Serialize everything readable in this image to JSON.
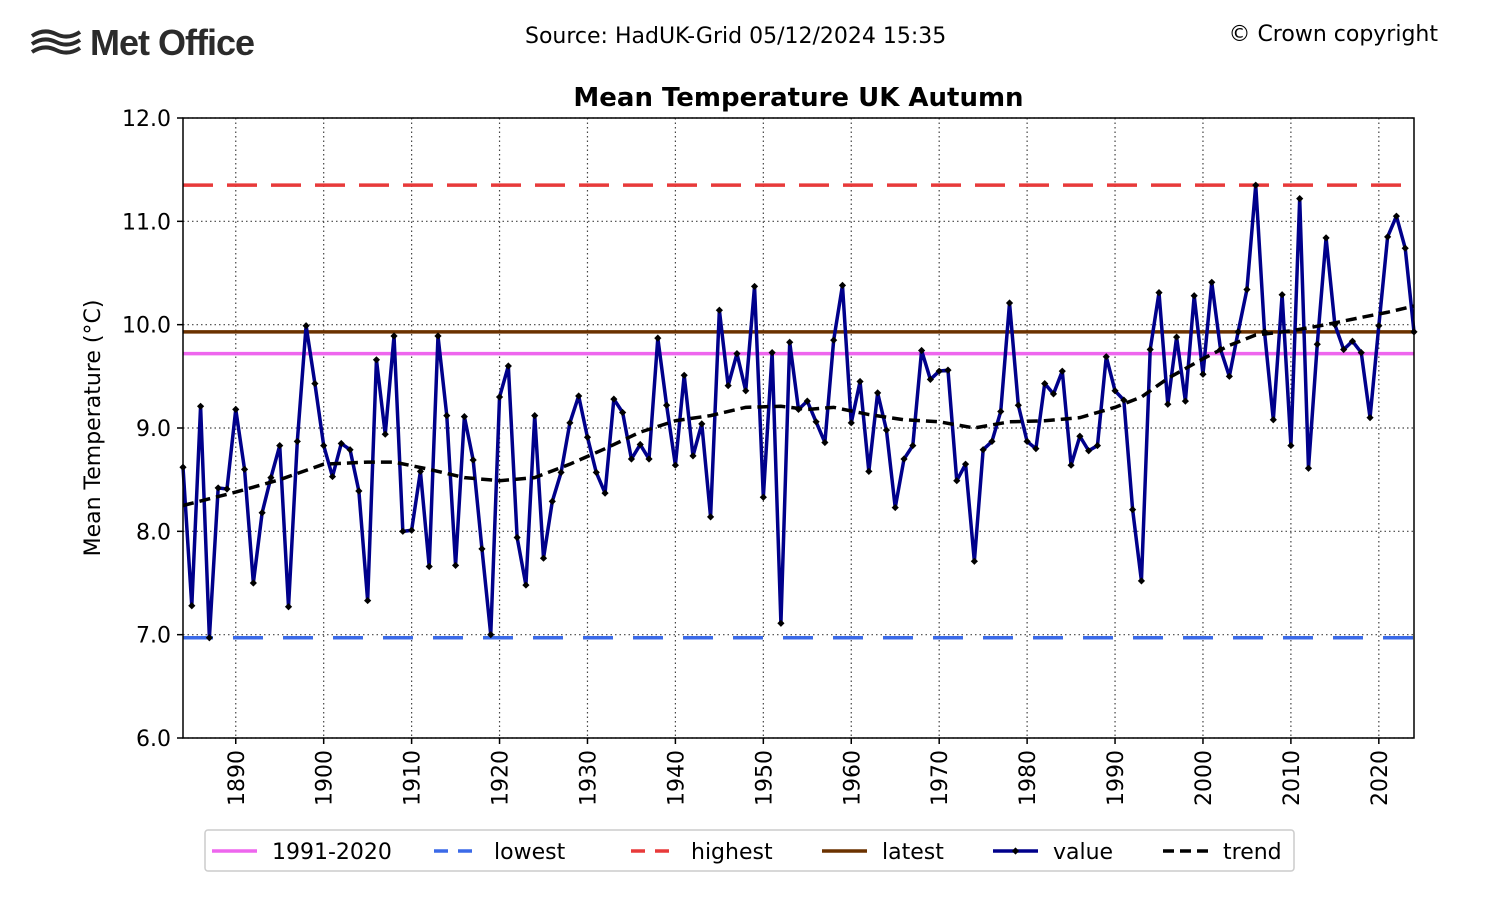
{
  "header": {
    "logo_text": "Met Office",
    "source": "Source: HadUK-Grid 05/12/2024 15:35",
    "copyright": "© Crown copyright"
  },
  "chart_data": {
    "type": "line",
    "title": "Mean Temperature UK Autumn",
    "xlabel": "",
    "ylabel": "Mean Temperature (°C)",
    "xlim": [
      1884,
      2024
    ],
    "ylim": [
      6.0,
      12.0
    ],
    "x_ticks": [
      1890,
      1900,
      1910,
      1920,
      1930,
      1940,
      1950,
      1960,
      1970,
      1980,
      1990,
      2000,
      2010,
      2020
    ],
    "y_ticks": [
      6.0,
      7.0,
      8.0,
      9.0,
      10.0,
      11.0,
      12.0
    ],
    "grid": true,
    "legend_position": "bottom",
    "reference_lines": [
      {
        "name": "1991-2020",
        "value": 9.72,
        "color": "#ee66ee",
        "style": "solid"
      },
      {
        "name": "lowest",
        "value": 6.97,
        "color": "#3b6ae8",
        "style": "dashed"
      },
      {
        "name": "highest",
        "value": 11.35,
        "color": "#e83a3a",
        "style": "dashed"
      },
      {
        "name": "latest",
        "value": 9.93,
        "color": "#6b3200",
        "style": "solid"
      }
    ],
    "series": [
      {
        "name": "value",
        "color": "#00008b",
        "start_year": 1884,
        "values": [
          8.62,
          7.28,
          9.21,
          6.97,
          8.42,
          8.41,
          9.18,
          8.6,
          7.5,
          8.18,
          8.52,
          8.83,
          7.27,
          8.87,
          9.99,
          9.43,
          8.83,
          8.53,
          8.85,
          8.79,
          8.39,
          7.33,
          9.66,
          8.94,
          9.89,
          8.0,
          8.01,
          8.58,
          7.66,
          9.89,
          9.12,
          7.67,
          9.11,
          8.69,
          7.83,
          7.0,
          9.3,
          9.6,
          7.94,
          7.48,
          9.12,
          7.74,
          8.29,
          8.57,
          9.05,
          9.31,
          8.91,
          8.57,
          8.37,
          9.28,
          9.15,
          8.7,
          8.84,
          8.7,
          9.87,
          9.22,
          8.64,
          9.51,
          8.73,
          9.04,
          8.14,
          10.14,
          9.41,
          9.72,
          9.36,
          10.37,
          8.33,
          9.73,
          7.11,
          9.83,
          9.18,
          9.26,
          9.06,
          8.86,
          9.85,
          10.38,
          9.05,
          9.45,
          8.58,
          9.34,
          8.98,
          8.23,
          8.7,
          8.83,
          9.75,
          9.47,
          9.55,
          9.56,
          8.49,
          8.65,
          7.71,
          8.79,
          8.87,
          9.16,
          10.21,
          9.22,
          8.87,
          8.8,
          9.43,
          9.33,
          9.55,
          8.64,
          8.92,
          8.78,
          8.83,
          9.69,
          9.36,
          9.27,
          8.21,
          7.52,
          9.76,
          10.31,
          9.23,
          9.88,
          9.26,
          10.28,
          9.52,
          10.41,
          9.76,
          9.5,
          9.93,
          10.34,
          11.35,
          9.93,
          9.08,
          10.29,
          8.83,
          11.22,
          8.61,
          9.81,
          10.84,
          10.0,
          9.76,
          9.84,
          9.73,
          9.1,
          9.99,
          10.85,
          11.05,
          10.74,
          9.93
        ]
      },
      {
        "name": "trend",
        "color": "#000000",
        "style": "dashed",
        "points": [
          [
            1884,
            8.25
          ],
          [
            1890,
            8.38
          ],
          [
            1895,
            8.5
          ],
          [
            1900,
            8.65
          ],
          [
            1905,
            8.67
          ],
          [
            1908,
            8.67
          ],
          [
            1912,
            8.6
          ],
          [
            1916,
            8.52
          ],
          [
            1920,
            8.49
          ],
          [
            1924,
            8.52
          ],
          [
            1928,
            8.65
          ],
          [
            1932,
            8.8
          ],
          [
            1936,
            8.96
          ],
          [
            1940,
            9.07
          ],
          [
            1944,
            9.12
          ],
          [
            1948,
            9.2
          ],
          [
            1952,
            9.21
          ],
          [
            1955,
            9.18
          ],
          [
            1958,
            9.2
          ],
          [
            1962,
            9.13
          ],
          [
            1966,
            9.08
          ],
          [
            1970,
            9.06
          ],
          [
            1974,
            9.0
          ],
          [
            1978,
            9.06
          ],
          [
            1982,
            9.07
          ],
          [
            1986,
            9.1
          ],
          [
            1990,
            9.2
          ],
          [
            1993,
            9.3
          ],
          [
            1996,
            9.48
          ],
          [
            2000,
            9.67
          ],
          [
            2003,
            9.8
          ],
          [
            2006,
            9.9
          ],
          [
            2010,
            9.94
          ],
          [
            2014,
            10.0
          ],
          [
            2018,
            10.07
          ],
          [
            2021,
            10.12
          ],
          [
            2024,
            10.18
          ]
        ]
      }
    ]
  }
}
